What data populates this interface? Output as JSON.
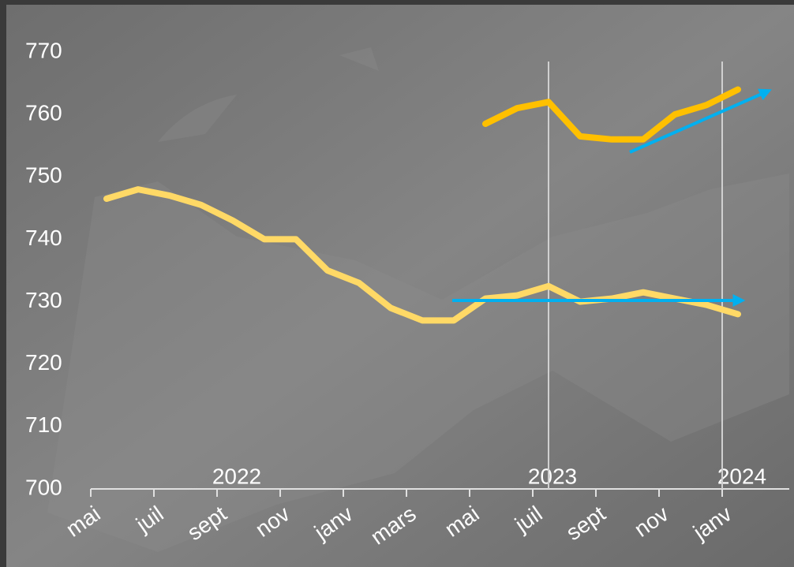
{
  "chart_data": {
    "type": "line",
    "x": [
      "2022-05",
      "2022-06",
      "2022-07",
      "2022-08",
      "2022-09",
      "2022-10",
      "2022-11",
      "2022-12",
      "2023-01",
      "2023-02",
      "2023-03",
      "2023-04",
      "2023-05",
      "2023-06",
      "2023-07",
      "2023-08",
      "2023-09",
      "2023-10",
      "2023-11",
      "2023-12",
      "2024-01"
    ],
    "series": [
      {
        "color": "#ffd966",
        "values": [
          746.5,
          748,
          747,
          745.5,
          743,
          740,
          740,
          735,
          733,
          729,
          727,
          727,
          730.5,
          731,
          732.5,
          730,
          730.5,
          731.5,
          730.5,
          729.5,
          728
        ]
      },
      {
        "color": "#ffc000",
        "values": [
          null,
          null,
          null,
          null,
          null,
          null,
          null,
          null,
          null,
          null,
          null,
          null,
          758.5,
          761,
          762,
          756.5,
          756,
          756,
          760,
          761.5,
          764
        ]
      }
    ],
    "xticks": [
      {
        "value": "2022-05",
        "label": "mai"
      },
      {
        "value": "2022-07",
        "label": "juil"
      },
      {
        "value": "2022-09",
        "label": "sept"
      },
      {
        "value": "2022-11",
        "label": "nov"
      },
      {
        "value": "2023-01",
        "label": "janv"
      },
      {
        "value": "2023-03",
        "label": "mars"
      },
      {
        "value": "2023-05",
        "label": "mai"
      },
      {
        "value": "2023-07",
        "label": "juil"
      },
      {
        "value": "2023-09",
        "label": "sept"
      },
      {
        "value": "2023-11",
        "label": "nov"
      },
      {
        "value": "2024-01",
        "label": "janv"
      }
    ],
    "year_labels": [
      {
        "value": "2022-09",
        "label": "2022"
      },
      {
        "value": "2023-07",
        "label": "2023"
      },
      {
        "value": "2024-01",
        "label": "2024"
      }
    ],
    "ylim": [
      700,
      770
    ],
    "yticks": [
      700,
      710,
      720,
      730,
      740,
      750,
      760,
      770
    ]
  }
}
